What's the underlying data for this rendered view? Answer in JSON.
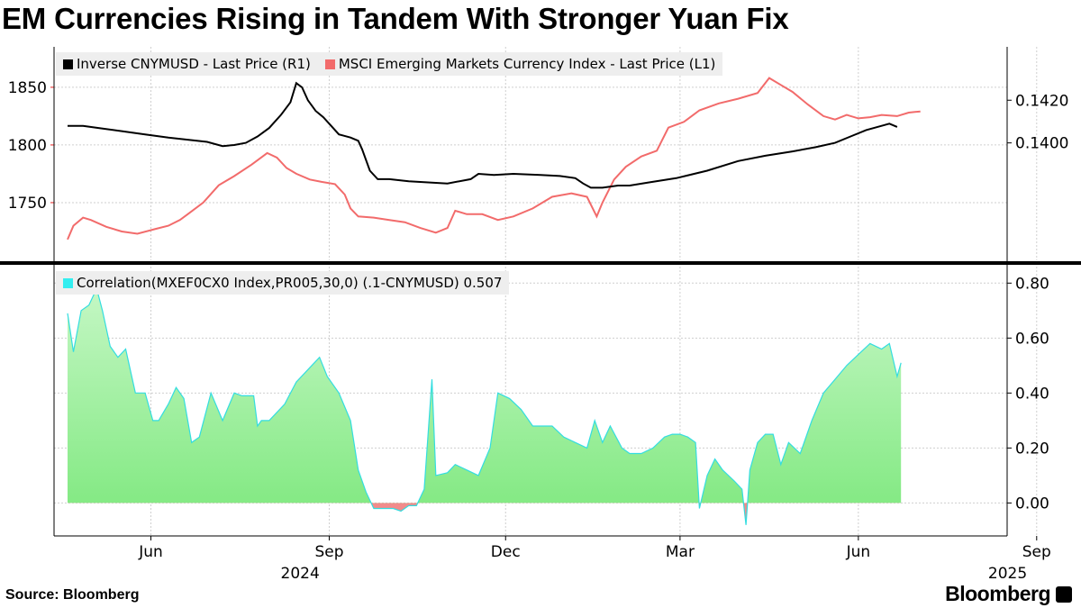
{
  "title": "EM Currencies Rising in Tandem With Stronger Yuan Fix",
  "source": "Source: Bloomberg",
  "brand": "Bloomberg",
  "colors": {
    "inverse": "#000000",
    "msci": "#f26b6b",
    "corr_fill": "#99ee99",
    "corr_line": "#33dde0",
    "corr_neg": "#f28b8b"
  },
  "legend_top": [
    {
      "label": "Inverse CNYMUSD - Last Price (R1)",
      "color": "#000000"
    },
    {
      "label": "MSCI Emerging Markets Currency Index - Last Price (L1)",
      "color": "#f26b6b"
    }
  ],
  "legend_bottom": {
    "label": "Correlation(MXEF0CX0 Index,PR005,30,0) (.1-CNYMUSD) 0.507",
    "color": "#33eef0"
  },
  "chart_data": [
    {
      "type": "line",
      "x_range": [
        0,
        475
      ],
      "x_ticks": [
        {
          "x": 43,
          "label": "Jun"
        },
        {
          "x": 135,
          "label": "Sep"
        },
        {
          "x": 226,
          "label": "Dec"
        },
        {
          "x": 316,
          "label": "Mar"
        },
        {
          "x": 408,
          "label": "Jun"
        },
        {
          "x": 500,
          "label": "Sep"
        }
      ],
      "year_labels": [
        {
          "x": 120,
          "label": "2024"
        },
        {
          "x": 485,
          "label": "2025"
        }
      ],
      "left_axis": {
        "range": [
          1700,
          1885
        ],
        "ticks": [
          1750,
          1800,
          1850
        ]
      },
      "right_axis": {
        "range": [
          0.1345,
          0.1445
        ],
        "ticks": [
          0.14,
          0.142
        ],
        "tick_labels": [
          "0.1400",
          "0.1420"
        ]
      },
      "series": [
        {
          "name": "MSCI Emerging Markets Currency Index - Last Price (L1)",
          "axis": "left",
          "points": [
            [
              0,
              1718
            ],
            [
              3,
              1730
            ],
            [
              8,
              1737
            ],
            [
              12,
              1735
            ],
            [
              20,
              1729
            ],
            [
              28,
              1725
            ],
            [
              36,
              1723
            ],
            [
              45,
              1727
            ],
            [
              52,
              1730
            ],
            [
              58,
              1735
            ],
            [
              62,
              1740
            ],
            [
              70,
              1750
            ],
            [
              78,
              1765
            ],
            [
              86,
              1773
            ],
            [
              95,
              1783
            ],
            [
              103,
              1793
            ],
            [
              108,
              1789
            ],
            [
              113,
              1780
            ],
            [
              118,
              1775
            ],
            [
              125,
              1770
            ],
            [
              131,
              1768
            ],
            [
              138,
              1766
            ],
            [
              143,
              1757
            ],
            [
              146,
              1745
            ],
            [
              150,
              1738
            ],
            [
              158,
              1737
            ],
            [
              166,
              1735
            ],
            [
              174,
              1733
            ],
            [
              182,
              1728
            ],
            [
              190,
              1724
            ],
            [
              196,
              1728
            ],
            [
              200,
              1743
            ],
            [
              206,
              1740
            ],
            [
              214,
              1740
            ],
            [
              222,
              1735
            ],
            [
              230,
              1738
            ],
            [
              240,
              1745
            ],
            [
              250,
              1755
            ],
            [
              260,
              1758
            ],
            [
              268,
              1755
            ],
            [
              273,
              1738
            ],
            [
              276,
              1750
            ],
            [
              282,
              1770
            ],
            [
              288,
              1781
            ],
            [
              296,
              1790
            ],
            [
              304,
              1795
            ],
            [
              310,
              1815
            ],
            [
              318,
              1820
            ],
            [
              326,
              1830
            ],
            [
              336,
              1836
            ],
            [
              346,
              1840
            ],
            [
              356,
              1845
            ],
            [
              362,
              1858
            ],
            [
              368,
              1852
            ],
            [
              374,
              1846
            ],
            [
              382,
              1835
            ],
            [
              390,
              1825
            ],
            [
              396,
              1822
            ],
            [
              402,
              1826
            ],
            [
              408,
              1823
            ],
            [
              414,
              1824
            ],
            [
              420,
              1826
            ],
            [
              428,
              1825
            ],
            [
              434,
              1828
            ],
            [
              440,
              1829
            ]
          ]
        },
        {
          "name": "Inverse CNYMUSD - Last Price (R1)",
          "axis": "right",
          "points": [
            [
              0,
              0.1408
            ],
            [
              8,
              0.1408
            ],
            [
              16,
              0.1407
            ],
            [
              28,
              0.14055
            ],
            [
              40,
              0.1404
            ],
            [
              52,
              0.14025
            ],
            [
              62,
              0.14015
            ],
            [
              72,
              0.14005
            ],
            [
              80,
              0.13985
            ],
            [
              86,
              0.1399
            ],
            [
              92,
              0.14
            ],
            [
              98,
              0.1403
            ],
            [
              104,
              0.1407
            ],
            [
              110,
              0.1413
            ],
            [
              115,
              0.1419
            ],
            [
              118,
              0.1428
            ],
            [
              121,
              0.1426
            ],
            [
              124,
              0.142
            ],
            [
              128,
              0.1415
            ],
            [
              132,
              0.1412
            ],
            [
              136,
              0.1408
            ],
            [
              140,
              0.1404
            ],
            [
              146,
              0.14025
            ],
            [
              150,
              0.1401
            ],
            [
              152,
              0.1397
            ],
            [
              156,
              0.1387
            ],
            [
              160,
              0.1383
            ],
            [
              166,
              0.1383
            ],
            [
              176,
              0.1382
            ],
            [
              186,
              0.13815
            ],
            [
              196,
              0.1381
            ],
            [
              208,
              0.1383
            ],
            [
              212,
              0.13855
            ],
            [
              220,
              0.1385
            ],
            [
              230,
              0.13855
            ],
            [
              244,
              0.1385
            ],
            [
              254,
              0.13845
            ],
            [
              262,
              0.13835
            ],
            [
              266,
              0.1381
            ],
            [
              270,
              0.1379
            ],
            [
              276,
              0.1379
            ],
            [
              284,
              0.138
            ],
            [
              290,
              0.138
            ],
            [
              300,
              0.13815
            ],
            [
              314,
              0.13835
            ],
            [
              330,
              0.1387
            ],
            [
              346,
              0.13915
            ],
            [
              360,
              0.1394
            ],
            [
              374,
              0.1396
            ],
            [
              386,
              0.1398
            ],
            [
              396,
              0.14
            ],
            [
              404,
              0.1403
            ],
            [
              412,
              0.1406
            ],
            [
              420,
              0.1408
            ],
            [
              424,
              0.1409
            ],
            [
              428,
              0.14075
            ]
          ]
        }
      ]
    },
    {
      "type": "area",
      "x_range": [
        0,
        475
      ],
      "y_axis": {
        "range": [
          -0.12,
          0.86
        ],
        "ticks": [
          0,
          0.2,
          0.4,
          0.6,
          0.8
        ],
        "tick_labels": [
          "0.00",
          "0.20",
          "0.40",
          "0.60",
          "0.80"
        ]
      },
      "series": [
        {
          "name": "Correlation(MXEF0CX0 Index,PR005,30,0) (.1-CNYMUSD)",
          "last_value": 0.507,
          "points": [
            [
              0,
              0.69
            ],
            [
              3,
              0.55
            ],
            [
              7,
              0.7
            ],
            [
              11,
              0.72
            ],
            [
              15,
              0.78
            ],
            [
              18,
              0.7
            ],
            [
              22,
              0.57
            ],
            [
              26,
              0.53
            ],
            [
              30,
              0.56
            ],
            [
              35,
              0.4
            ],
            [
              40,
              0.4
            ],
            [
              44,
              0.3
            ],
            [
              47,
              0.3
            ],
            [
              52,
              0.36
            ],
            [
              56,
              0.42
            ],
            [
              60,
              0.38
            ],
            [
              64,
              0.22
            ],
            [
              68,
              0.24
            ],
            [
              74,
              0.4
            ],
            [
              80,
              0.3
            ],
            [
              86,
              0.4
            ],
            [
              90,
              0.39
            ],
            [
              96,
              0.39
            ],
            [
              98,
              0.28
            ],
            [
              100,
              0.3
            ],
            [
              104,
              0.3
            ],
            [
              112,
              0.36
            ],
            [
              118,
              0.44
            ],
            [
              126,
              0.5
            ],
            [
              130,
              0.53
            ],
            [
              134,
              0.46
            ],
            [
              140,
              0.4
            ],
            [
              146,
              0.3
            ],
            [
              150,
              0.12
            ],
            [
              154,
              0.04
            ],
            [
              158,
              -0.02
            ],
            [
              163,
              -0.02
            ],
            [
              168,
              -0.02
            ],
            [
              172,
              -0.03
            ],
            [
              176,
              -0.01
            ],
            [
              180,
              -0.01
            ],
            [
              184,
              0.05
            ],
            [
              188,
              0.45
            ],
            [
              190,
              0.1
            ],
            [
              196,
              0.11
            ],
            [
              200,
              0.14
            ],
            [
              206,
              0.12
            ],
            [
              212,
              0.1
            ],
            [
              218,
              0.2
            ],
            [
              222,
              0.4
            ],
            [
              228,
              0.38
            ],
            [
              234,
              0.34
            ],
            [
              240,
              0.28
            ],
            [
              246,
              0.28
            ],
            [
              250,
              0.28
            ],
            [
              256,
              0.24
            ],
            [
              262,
              0.22
            ],
            [
              268,
              0.2
            ],
            [
              272,
              0.3
            ],
            [
              276,
              0.22
            ],
            [
              280,
              0.28
            ],
            [
              286,
              0.2
            ],
            [
              290,
              0.18
            ],
            [
              296,
              0.18
            ],
            [
              302,
              0.2
            ],
            [
              308,
              0.24
            ],
            [
              312,
              0.25
            ],
            [
              316,
              0.25
            ],
            [
              320,
              0.24
            ],
            [
              324,
              0.22
            ],
            [
              326,
              -0.02
            ],
            [
              330,
              0.1
            ],
            [
              334,
              0.16
            ],
            [
              338,
              0.12
            ],
            [
              344,
              0.08
            ],
            [
              348,
              0.05
            ],
            [
              350,
              -0.08
            ],
            [
              352,
              0.12
            ],
            [
              356,
              0.22
            ],
            [
              360,
              0.25
            ],
            [
              364,
              0.25
            ],
            [
              368,
              0.14
            ],
            [
              372,
              0.22
            ],
            [
              378,
              0.18
            ],
            [
              384,
              0.3
            ],
            [
              390,
              0.4
            ],
            [
              396,
              0.45
            ],
            [
              402,
              0.5
            ],
            [
              408,
              0.54
            ],
            [
              414,
              0.58
            ],
            [
              420,
              0.56
            ],
            [
              424,
              0.58
            ],
            [
              428,
              0.46
            ],
            [
              430,
              0.51
            ]
          ]
        }
      ]
    }
  ]
}
